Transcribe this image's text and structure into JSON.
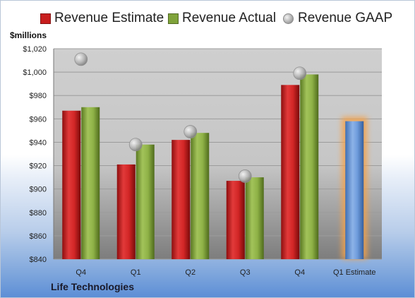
{
  "chart_data": {
    "type": "bar",
    "ylabel": "$millions",
    "categories": [
      "Q4",
      "Q1",
      "Q2",
      "Q3",
      "Q4",
      "Q1 Estimate"
    ],
    "ylim": [
      840,
      1020
    ],
    "yticks": [
      "$840",
      "$860",
      "$880",
      "$900",
      "$920",
      "$940",
      "$960",
      "$980",
      "$1,000",
      "$1,020"
    ],
    "grid": true,
    "legend_position": "top",
    "series": [
      {
        "name": "Revenue Estimate",
        "type": "bar",
        "color": "#c81e1e",
        "values": [
          967,
          921,
          942,
          907,
          989,
          null
        ]
      },
      {
        "name": "Revenue Actual",
        "type": "bar",
        "color": "#7fa33a",
        "values": [
          970,
          938,
          948,
          910,
          998,
          null
        ]
      },
      {
        "name": "Revenue GAAP",
        "type": "scatter",
        "color": "#a0a0a0",
        "values": [
          1011,
          938,
          949,
          911,
          999,
          null
        ]
      }
    ],
    "forecast": {
      "category": "Q1 Estimate",
      "value": 958,
      "color": "#5b8fd3",
      "glow_color": "#f5a24a"
    }
  },
  "footer": {
    "company": "Life Technologies"
  }
}
